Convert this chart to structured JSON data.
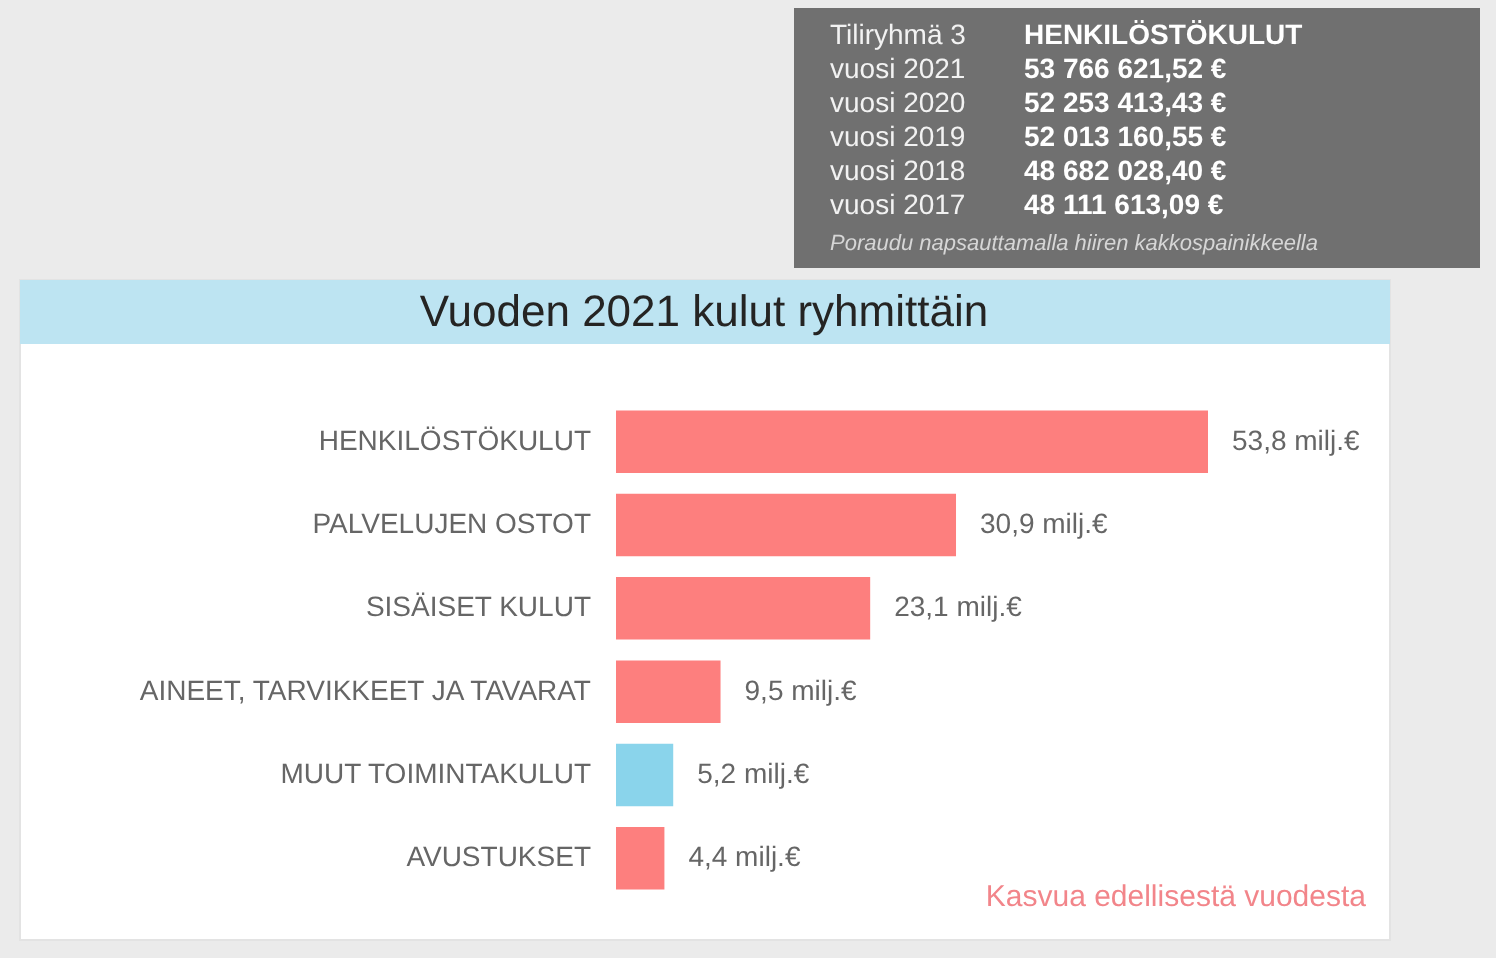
{
  "chart_data": {
    "type": "bar",
    "orientation": "horizontal",
    "title": "Vuoden 2021 kulut ryhmittäin",
    "categories": [
      "HENKILÖSTÖKULUT",
      "PALVELUJEN OSTOT",
      "SISÄISET KULUT",
      "AINEET, TARVIKKEET JA TAVARAT",
      "MUUT TOIMINTAKULUT",
      "AVUSTUKSET"
    ],
    "values": [
      53.8,
      30.9,
      23.1,
      9.5,
      5.2,
      4.4
    ],
    "colors": [
      "#fd7f7e",
      "#fd7f7e",
      "#fd7f7e",
      "#fd7f7e",
      "#8ad4eb",
      "#fd7f7e"
    ],
    "value_labels": [
      "53,8 milj.€",
      "30,9 milj.€",
      "23,1 milj.€",
      "9,5 milj.€",
      "5,2 milj.€",
      "4,4 milj.€"
    ],
    "annotations": [
      "Tiliryhmä 3",
      "HENKILÖSTÖKULUT",
      "vuosi 2021",
      "53 766 621,52 €",
      "vuosi 2020",
      "52 253 413,43 €",
      "vuosi 2019",
      "52 013 160,55 €",
      "vuosi 2018",
      "48 682 028,40 €",
      "vuosi 2017",
      "48 111 613,09 €",
      "Poraudu napsauttamalla hiiren kakkospainikkeella",
      "Kasvua edellisestä vuodesta"
    ]
  }
}
